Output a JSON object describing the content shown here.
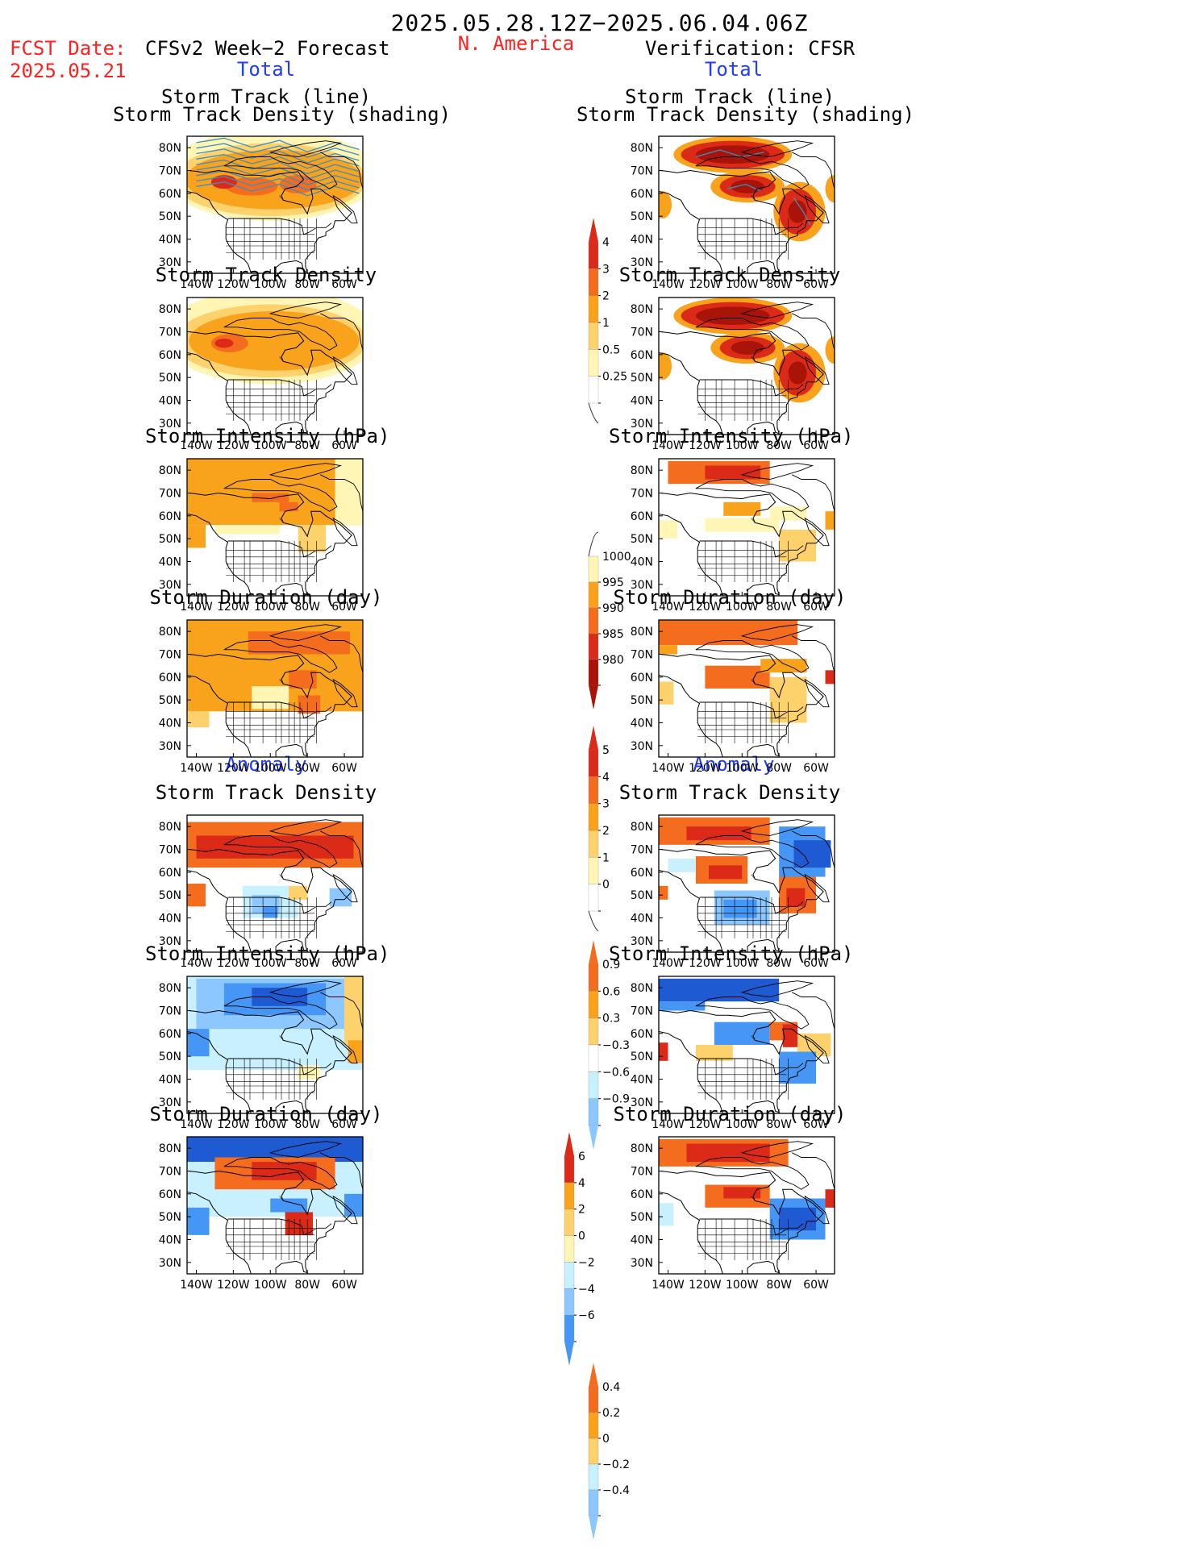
{
  "header": {
    "date_range": "2025.05.28.12Z−2025.06.04.06Z",
    "fcst_label": "FCST Date:",
    "fcst_date": "2025.05.21",
    "left_title": "CFSv2 Week−2 Forecast",
    "region": "N. America",
    "right_title": "Verification: CFSR"
  },
  "sections": {
    "total": "Total",
    "anomaly": "Anomaly"
  },
  "panel_titles": {
    "track_line": "Storm Track (line)",
    "track_density_shading": "Storm Track Density (shading)",
    "track_density": "Storm Track Density",
    "intensity": "Storm Intensity (hPa)",
    "duration": "Storm Duration (day)"
  },
  "axes": {
    "lat_labels": [
      "80N",
      "70N",
      "60N",
      "50N",
      "40N",
      "30N"
    ],
    "lon_labels": [
      "140W",
      "120W",
      "100W",
      "80W",
      "60W"
    ]
  },
  "colorbars": {
    "density_total": [
      "4",
      "3",
      "2",
      "1",
      "0.5",
      "0.25"
    ],
    "intensity_total": [
      "1000",
      "995",
      "990",
      "985",
      "980"
    ],
    "duration_total": [
      "5",
      "4",
      "3",
      "2",
      "1",
      "0"
    ],
    "density_anom": [
      "0.9",
      "0.6",
      "0.3",
      "−0.3",
      "−0.6",
      "−0.9"
    ],
    "intensity_anom": [
      "6",
      "4",
      "2",
      "0",
      "−2",
      "−4",
      "−6"
    ],
    "duration_anom": [
      "0.4",
      "0.2",
      "0",
      "−0.2",
      "−0.4"
    ]
  },
  "colors": {
    "pale_yellow": "#fff5b4",
    "light_orange": "#fdd26d",
    "orange": "#f9a21b",
    "dark_orange": "#f46d1e",
    "red": "#dc2a18",
    "dark_red": "#a81408",
    "light_blue": "#c8f0ff",
    "mid_blue": "#8cc8ff",
    "blue": "#4696f5",
    "dark_blue": "#1e5ad2",
    "track_line": "#3a8fc6"
  }
}
